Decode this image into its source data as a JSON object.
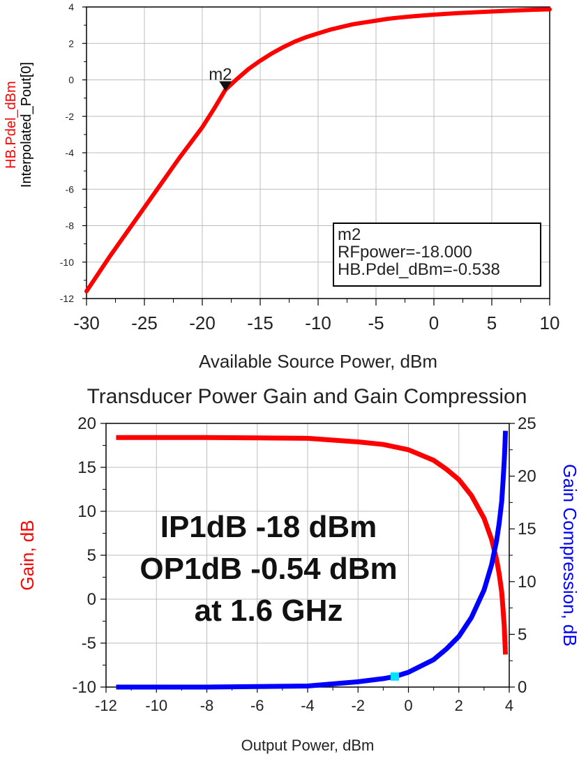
{
  "chart_data": [
    {
      "type": "line",
      "title": "",
      "xlabel": "Available Source Power, dBm",
      "ylabel_top": "HB.Pdel_dBm",
      "ylabel_bottom": "Interpolated_Pout[0]",
      "xlim": [
        -30,
        10
      ],
      "ylim": [
        -12,
        4
      ],
      "x_ticks": [
        -30,
        -25,
        -20,
        -15,
        -10,
        -5,
        0,
        5,
        10
      ],
      "y_ticks": [
        -12,
        -10,
        -8,
        -6,
        -4,
        -2,
        0,
        2,
        4
      ],
      "grid": true,
      "series": [
        {
          "name": "HB.Pdel_dBm",
          "color": "#ff0000",
          "x": [
            -30,
            -28,
            -26,
            -24,
            -22,
            -20,
            -19,
            -18,
            -17,
            -16,
            -15,
            -14,
            -13,
            -12,
            -11,
            -10,
            -9,
            -8,
            -7,
            -6,
            -5,
            -4,
            -3,
            -2,
            -1,
            0,
            2,
            4,
            6,
            8,
            10
          ],
          "y": [
            -11.6,
            -9.7,
            -7.9,
            -6.1,
            -4.3,
            -2.6,
            -1.6,
            -0.538,
            0.05,
            0.6,
            1.05,
            1.45,
            1.8,
            2.1,
            2.35,
            2.55,
            2.75,
            2.9,
            3.05,
            3.15,
            3.25,
            3.35,
            3.42,
            3.48,
            3.53,
            3.58,
            3.66,
            3.72,
            3.78,
            3.83,
            3.87
          ]
        }
      ],
      "marker": {
        "name": "m2",
        "x": -18.0,
        "y": -0.538,
        "lines": [
          "m2",
          "RFpower=-18.000",
          "HB.Pdel_dBm=-0.538"
        ]
      }
    },
    {
      "type": "line",
      "title": "Transducer Power Gain and Gain Compression",
      "xlabel": "Output Power, dBm",
      "ylabel_left": "Gain, dB",
      "ylabel_right": "Gain Compression, dB",
      "xlim": [
        -12,
        4
      ],
      "ylim_left": [
        -10,
        20
      ],
      "ylim_right": [
        0,
        25
      ],
      "x_ticks": [
        -12,
        -10,
        -8,
        -6,
        -4,
        -2,
        0,
        2,
        4
      ],
      "y_ticks_left": [
        -10,
        -5,
        0,
        5,
        10,
        15,
        20
      ],
      "y_ticks_right": [
        0,
        5,
        10,
        15,
        20,
        25
      ],
      "grid": true,
      "series": [
        {
          "name": "Gain, dB",
          "axis": "left",
          "color": "#ff0000",
          "x": [
            -11.6,
            -10,
            -8,
            -6,
            -4,
            -2,
            -1,
            0,
            1,
            1.5,
            2,
            2.5,
            3,
            3.3,
            3.5,
            3.6,
            3.7,
            3.75,
            3.8,
            3.83,
            3.85
          ],
          "y": [
            18.4,
            18.4,
            18.4,
            18.35,
            18.3,
            17.9,
            17.6,
            17.0,
            15.8,
            14.8,
            13.6,
            11.8,
            9.2,
            6.8,
            4.5,
            2.9,
            0.8,
            -1.0,
            -3.0,
            -5.0,
            -6.3
          ]
        },
        {
          "name": "Gain Compression, dB",
          "axis": "right",
          "color": "#0000ff",
          "x": [
            -11.6,
            -10,
            -8,
            -6,
            -4,
            -2,
            -1,
            -0.54,
            0,
            1,
            1.5,
            2,
            2.5,
            3,
            3.3,
            3.5,
            3.6,
            3.7,
            3.75,
            3.8,
            3.83,
            3.85
          ],
          "y": [
            0,
            0.0,
            0.0,
            0.05,
            0.1,
            0.5,
            0.8,
            1.0,
            1.4,
            2.6,
            3.6,
            4.8,
            6.6,
            9.2,
            11.6,
            13.9,
            15.5,
            17.6,
            19.4,
            21.4,
            23.0,
            24.3
          ]
        }
      ],
      "highlight_point": {
        "x": -0.54,
        "y": 1.0,
        "axis": "right",
        "color": "#00e5ff"
      },
      "annotation_lines": [
        "IP1dB -18 dBm",
        "OP1dB -0.54 dBm",
        "at 1.6 GHz"
      ]
    }
  ]
}
